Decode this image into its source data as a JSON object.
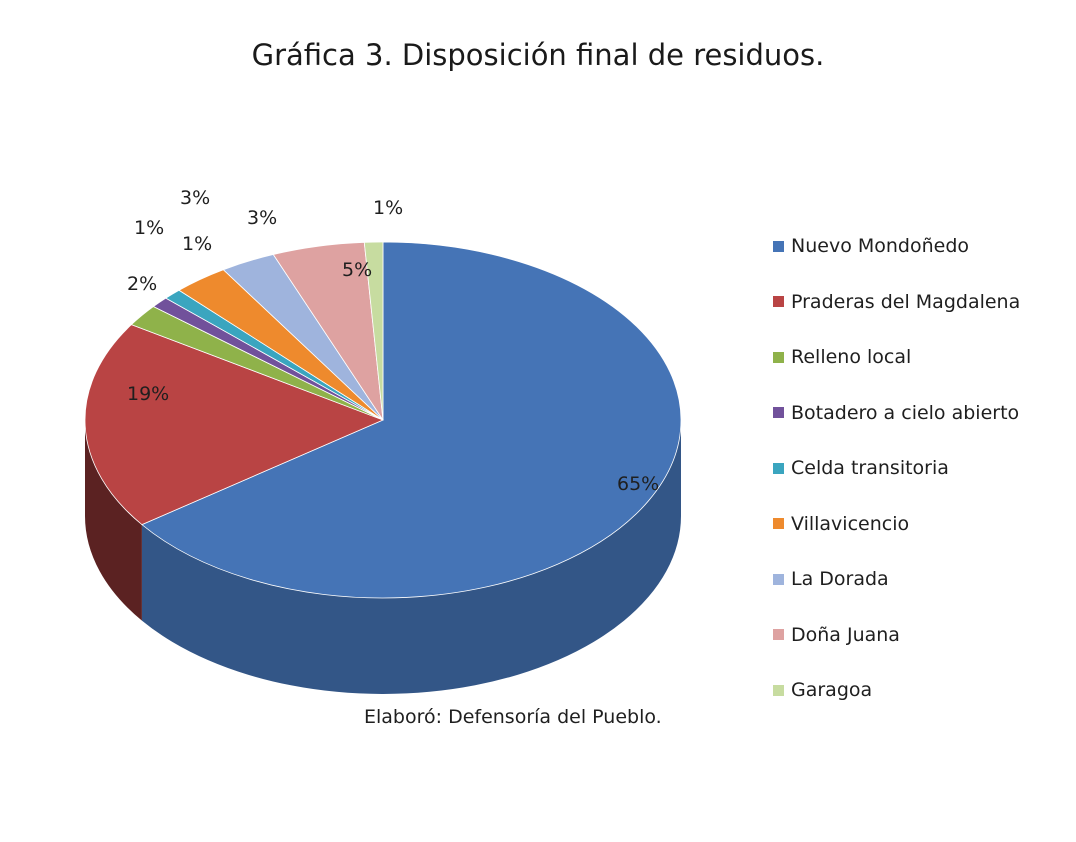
{
  "chart_data": {
    "type": "pie",
    "title": "Gráfica 3. Disposición final de residuos.",
    "categories": [
      "Nuevo Mondoñedo",
      "Praderas del Magdalena",
      "Relleno local",
      "Botadero a cielo abierto",
      "Celda transitoria",
      "Villavicencio",
      "La Dorada",
      "Doña Juana",
      "Garagoa"
    ],
    "values": [
      65,
      19,
      2,
      1,
      1,
      3,
      3,
      5,
      1
    ],
    "data_labels": [
      "65%",
      "19%",
      "2%",
      "1%",
      "1%",
      "3%",
      "3%",
      "5%",
      "1%"
    ],
    "colors": [
      "#4574b6",
      "#b94444",
      "#8fb24a",
      "#71519b",
      "#3aa5bf",
      "#ee8a2d",
      "#9fb4dd",
      "#dea2a1",
      "#c7dca0"
    ],
    "legend": "right",
    "source_note": "Elaboró: Defensoría del Pueblo."
  }
}
